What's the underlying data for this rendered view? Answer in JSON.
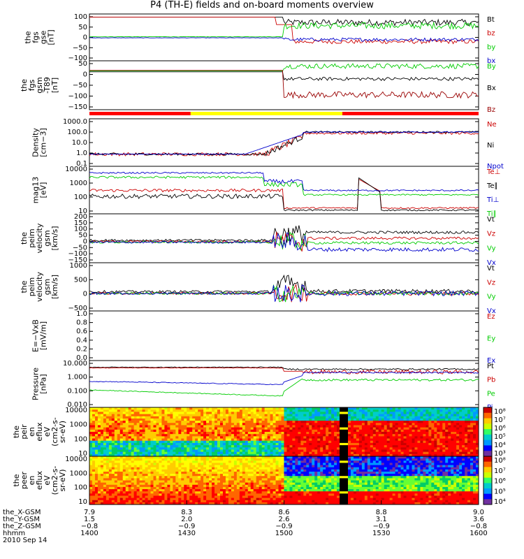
{
  "title": "P4 (TH-E) fields and on-board moments overview",
  "panels": [
    {
      "id": "fgs_gse",
      "ylabel": [
        "the",
        "fgs",
        "gse",
        "[nT]"
      ],
      "ticks": [
        "100",
        "50",
        "0",
        "−50",
        "−100"
      ],
      "ymin": -110,
      "ymax": 110,
      "legend": [
        {
          "t": "Bt",
          "c": "#000000"
        },
        {
          "t": "bz",
          "c": "#cc0000"
        },
        {
          "t": "by",
          "c": "#00cc00"
        },
        {
          "t": "bx",
          "c": "#0000cc"
        }
      ]
    },
    {
      "id": "fgs_gsm",
      "ylabel": [
        "the",
        "fgs",
        "gsm",
        "-T89",
        "[nT]"
      ],
      "ticks": [
        "50",
        "0",
        "−50",
        "−100",
        "−150"
      ],
      "ymin": -170,
      "ymax": 60,
      "legend": [
        {
          "t": "By",
          "c": "#00cc00"
        },
        {
          "t": "Bx",
          "c": "#000000"
        },
        {
          "t": "Bz",
          "c": "#990000"
        }
      ]
    },
    {
      "id": "density",
      "ylabel": [
        "Density",
        "[cm−3]"
      ],
      "ticks": [
        "1000.0",
        "100.0",
        "10.0",
        "1.0",
        "0.1"
      ],
      "log": true,
      "ymin": -1.1,
      "ymax": 3.2,
      "legend": [
        {
          "t": "Ne",
          "c": "#cc0000"
        },
        {
          "t": "Ni",
          "c": "#000000"
        },
        {
          "t": "Npot",
          "c": "#0000cc"
        }
      ]
    },
    {
      "id": "temp",
      "ylabel": [
        "mag13",
        "[eV]"
      ],
      "ticks": [
        "10000",
        "1000",
        "100",
        "10"
      ],
      "log": true,
      "ymin": 0.8,
      "ymax": 4.05,
      "legend": [
        {
          "t": "Te⊥",
          "c": "#cc0000"
        },
        {
          "t": "Te∥",
          "c": "#000000"
        },
        {
          "t": "Ti⊥",
          "c": "#0000cc"
        },
        {
          "t": "Ti∥",
          "c": "#00cc00"
        }
      ]
    },
    {
      "id": "vel1",
      "ylabel": [
        "the",
        "peim",
        "velocity",
        "gsm",
        "[km/s]"
      ],
      "ticks": [
        "200",
        "150",
        "100",
        "50",
        "0",
        "−50",
        "−100",
        "−150"
      ],
      "ymin": -160,
      "ymax": 210,
      "legend": [
        {
          "t": "Vt",
          "c": "#000000"
        },
        {
          "t": "Vz",
          "c": "#cc0000"
        },
        {
          "t": "Vy",
          "c": "#00cc00"
        },
        {
          "t": "Vx",
          "c": "#0000cc"
        }
      ]
    },
    {
      "id": "vel2",
      "ylabel": [
        "the",
        "peim",
        "velocity",
        "gsm",
        "[km/s]"
      ],
      "ticks": [
        "1000",
        "500",
        "0",
        "−500"
      ],
      "ymin": -600,
      "ymax": 1050,
      "legend": [
        {
          "t": "Vt",
          "c": "#000000"
        },
        {
          "t": "Vz",
          "c": "#cc0000"
        },
        {
          "t": "Vy",
          "c": "#00cc00"
        },
        {
          "t": "Vx",
          "c": "#0000cc"
        }
      ]
    },
    {
      "id": "efield",
      "ylabel": [
        "E=−VxB",
        "[mV/m]"
      ],
      "ticks": [
        "1.0",
        "0.8",
        "0.6",
        "0.4",
        "0.2",
        "0.0"
      ],
      "ymin": 0,
      "ymax": 1.0,
      "legend": [
        {
          "t": "Ez",
          "c": "#cc0000"
        },
        {
          "t": "Ey",
          "c": "#00cc00"
        },
        {
          "t": "Ex",
          "c": "#0000cc"
        }
      ]
    },
    {
      "id": "pressure",
      "ylabel": [
        "Pressure",
        "[nPa]"
      ],
      "ticks": [
        "10.000",
        "1.000",
        "0.100",
        "0.010"
      ],
      "log": true,
      "ymin": -2.4,
      "ymax": 1.1,
      "legend": [
        {
          "t": "Pt",
          "c": "#000000"
        },
        {
          "t": "Pb",
          "c": "#cc0000"
        },
        {
          "t": "Pe",
          "c": "#00cc00"
        },
        {
          "t": "Pi",
          "c": "#0000cc"
        }
      ]
    },
    {
      "id": "peir",
      "ylabel": [
        "the",
        "peir",
        "en",
        "eflux",
        "eV",
        "(cm2-s-",
        "sr-eV)"
      ],
      "ticks": [
        "10000",
        "1000",
        "100",
        "10"
      ],
      "spec": true
    },
    {
      "id": "peer",
      "ylabel": [
        "the",
        "peer",
        "en",
        "eflux",
        "eV",
        "(cm2-s-",
        "sr-eV)"
      ],
      "ticks": [
        "10000",
        "1000",
        "100",
        "10"
      ],
      "spec": true
    }
  ],
  "colorbar_ticks_1": [
    "10⁸",
    "10⁷",
    "10⁶",
    "10⁵",
    "10⁴",
    "10³"
  ],
  "colorbar_ticks_2": [
    "10⁸",
    "10⁷",
    "10⁶",
    "10⁵",
    "10⁴"
  ],
  "footer": {
    "rows": [
      "the_X-GSM",
      "the_Y-GSM",
      "the_Z-GSM",
      "hhmm"
    ],
    "date": "2010 Sep 14",
    "cols": [
      {
        "x": "7.9",
        "y": "1.5",
        "z": "−0.8",
        "t": "1400"
      },
      {
        "x": "8.3",
        "y": "2.0",
        "z": "−0.9",
        "t": "1430"
      },
      {
        "x": "8.6",
        "y": "2.6",
        "z": "−0.9",
        "t": "1500"
      },
      {
        "x": "8.8",
        "y": "3.1",
        "z": "−0.9",
        "t": "1530"
      },
      {
        "x": "9.0",
        "y": "3.6",
        "z": "−0.8",
        "t": "1600"
      }
    ]
  },
  "mode_bar": [
    {
      "from": 0.0,
      "to": 0.26,
      "color": "#ff0000"
    },
    {
      "from": 0.26,
      "to": 0.65,
      "color": "#ffff00"
    },
    {
      "from": 0.65,
      "to": 1.0,
      "color": "#ff0000"
    }
  ],
  "chart_data": {
    "type": "line",
    "title": "P4 (TH-E) fields and on-board moments overview",
    "x_ticks": [
      "1400",
      "1430",
      "1500",
      "1530",
      "1600"
    ],
    "x_range": [
      "14:00",
      "16:00"
    ],
    "series": [
      {
        "name": "Bt",
        "panel": "fgs_gse",
        "before_1500": 95,
        "after_1500": 70
      },
      {
        "name": "bz",
        "panel": "fgs_gse",
        "before_1500": 95,
        "after_1500": -20
      },
      {
        "name": "by",
        "panel": "fgs_gse",
        "before_1500": 5,
        "after_1500": 60
      },
      {
        "name": "bx",
        "panel": "fgs_gse",
        "before_1500": 0,
        "after_1500": -15
      },
      {
        "name": "Ne",
        "panel": "density",
        "before_1500": 1,
        "after_1500": 100
      },
      {
        "name": "Ni",
        "panel": "density",
        "before_1500": 1,
        "after_1500": 100
      },
      {
        "name": "Npot",
        "panel": "density",
        "before_1500": 1,
        "after_1500": 100
      }
    ]
  }
}
